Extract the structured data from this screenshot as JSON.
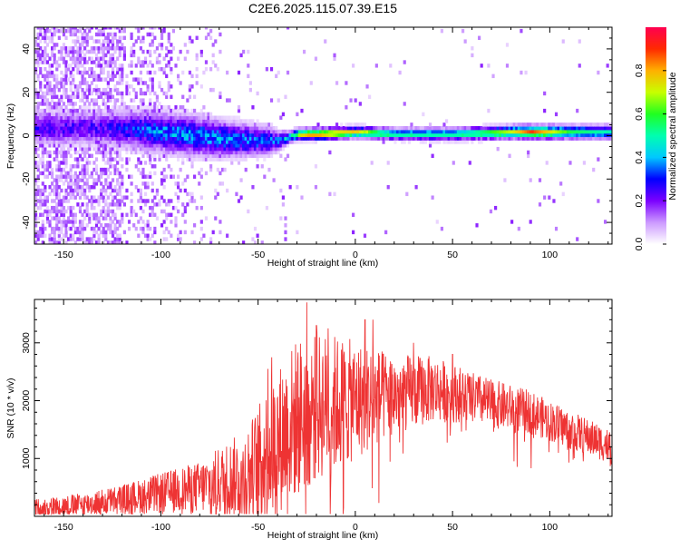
{
  "chart_data": [
    {
      "type": "heatmap",
      "title": "C2E6.2025.115.07.39.E15",
      "xlabel": "Height of straight line (km)",
      "ylabel": "Frequency (Hz)",
      "xlim": [
        -165,
        132
      ],
      "ylim": [
        -50,
        50
      ],
      "x_ticks": [
        "-150",
        "-100",
        "-50",
        "0",
        "50",
        "100"
      ],
      "y_ticks": [
        "-40",
        "-20",
        "0",
        "20",
        "40"
      ],
      "colorbar": {
        "label": "Normalized spectral amplitude",
        "range": [
          0.0,
          1.0
        ],
        "ticks": [
          "0.0",
          "0.2",
          "0.4",
          "0.6",
          "0.8"
        ],
        "colors": [
          "#ffffff",
          "#cc99ff",
          "#7b00ff",
          "#0000ff",
          "#00c8ff",
          "#00ffb0",
          "#20ff20",
          "#c8ff00",
          "#ffb000",
          "#ff2a00",
          "#ff0050"
        ]
      },
      "ridge": {
        "description": "central frequency ridge",
        "points": [
          {
            "x": -135,
            "y": 3
          },
          {
            "x": -110,
            "y": 2
          },
          {
            "x": -90,
            "y": 0
          },
          {
            "x": -70,
            "y": -2
          },
          {
            "x": -50,
            "y": -3
          },
          {
            "x": -40,
            "y": -3
          },
          {
            "x": -30,
            "y": 0
          },
          {
            "x": -20,
            "y": 0
          },
          {
            "x": 0,
            "y": 1
          },
          {
            "x": 20,
            "y": 0
          },
          {
            "x": 50,
            "y": 0
          },
          {
            "x": 80,
            "y": 1
          },
          {
            "x": 100,
            "y": 1
          },
          {
            "x": 132,
            "y": 1
          }
        ],
        "halfwidth_hz": [
          {
            "x": -135,
            "v": 6
          },
          {
            "x": -110,
            "v": 7
          },
          {
            "x": -80,
            "v": 7
          },
          {
            "x": -60,
            "v": 6
          },
          {
            "x": -45,
            "v": 5
          },
          {
            "x": -35,
            "v": 2
          },
          {
            "x": 0,
            "v": 2
          },
          {
            "x": 132,
            "v": 2.5
          }
        ],
        "peak_amplitude": [
          {
            "x": -130,
            "v": 0.3
          },
          {
            "x": -100,
            "v": 0.45
          },
          {
            "x": -60,
            "v": 0.45
          },
          {
            "x": -40,
            "v": 0.4
          },
          {
            "x": -25,
            "v": 0.9
          },
          {
            "x": -10,
            "v": 0.9
          },
          {
            "x": 5,
            "v": 0.75
          },
          {
            "x": 20,
            "v": 0.55
          },
          {
            "x": 50,
            "v": 0.55
          },
          {
            "x": 80,
            "v": 0.75
          },
          {
            "x": 90,
            "v": 0.95
          },
          {
            "x": 110,
            "v": 0.6
          },
          {
            "x": 132,
            "v": 0.5
          }
        ]
      }
    },
    {
      "type": "line",
      "title": "",
      "xlabel": "Height of straight line (km)",
      "ylabel": "SNR (10 * v/v)",
      "xlim": [
        -165,
        132
      ],
      "ylim": [
        0,
        3750
      ],
      "x_ticks": [
        "-150",
        "-100",
        "-50",
        "0",
        "50",
        "100"
      ],
      "y_ticks": [
        "1000",
        "2000",
        "3000"
      ],
      "series": [
        {
          "color": "#ee3333",
          "baseline": [
            {
              "x": -165,
              "y": 150
            },
            {
              "x": -140,
              "y": 200
            },
            {
              "x": -120,
              "y": 300
            },
            {
              "x": -100,
              "y": 400
            },
            {
              "x": -80,
              "y": 500
            },
            {
              "x": -60,
              "y": 700
            },
            {
              "x": -50,
              "y": 900
            },
            {
              "x": -40,
              "y": 1300
            },
            {
              "x": -30,
              "y": 1700
            },
            {
              "x": -20,
              "y": 1900
            },
            {
              "x": 0,
              "y": 2000
            },
            {
              "x": 20,
              "y": 2100
            },
            {
              "x": 40,
              "y": 2200
            },
            {
              "x": 55,
              "y": 2100
            },
            {
              "x": 70,
              "y": 1950
            },
            {
              "x": 90,
              "y": 1800
            },
            {
              "x": 110,
              "y": 1500
            },
            {
              "x": 132,
              "y": 1200
            }
          ],
          "spread": [
            {
              "x": -165,
              "y": 150
            },
            {
              "x": -120,
              "y": 250
            },
            {
              "x": -80,
              "y": 450
            },
            {
              "x": -55,
              "y": 800
            },
            {
              "x": -45,
              "y": 1200
            },
            {
              "x": -30,
              "y": 1400
            },
            {
              "x": -10,
              "y": 1200
            },
            {
              "x": 20,
              "y": 700
            },
            {
              "x": 60,
              "y": 450
            },
            {
              "x": 100,
              "y": 350
            },
            {
              "x": 132,
              "y": 300
            }
          ],
          "peaks": [
            {
              "x": -25,
              "y": 3700
            },
            {
              "x": -20,
              "y": 3300
            },
            {
              "x": -14,
              "y": 3250
            },
            {
              "x": 5,
              "y": 3400
            },
            {
              "x": 9,
              "y": 3400
            },
            {
              "x": -45,
              "y": 2550
            },
            {
              "x": -43,
              "y": 2750
            },
            {
              "x": 30,
              "y": 3000
            },
            {
              "x": 50,
              "y": 2800
            }
          ]
        }
      ]
    }
  ]
}
